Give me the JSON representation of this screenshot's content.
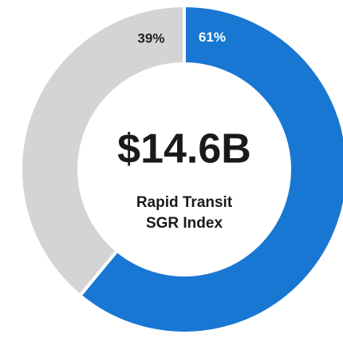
{
  "chart_data": {
    "type": "donut",
    "values": [
      61,
      39
    ],
    "value_labels": [
      "61%",
      "39%"
    ],
    "colors": [
      "#1877d2",
      "#d4d4d4"
    ],
    "label_colors": [
      "#ffffff",
      "#222222"
    ],
    "center_value": "$14.6B",
    "center_label": [
      "Rapid Transit",
      "SGR Index"
    ]
  }
}
